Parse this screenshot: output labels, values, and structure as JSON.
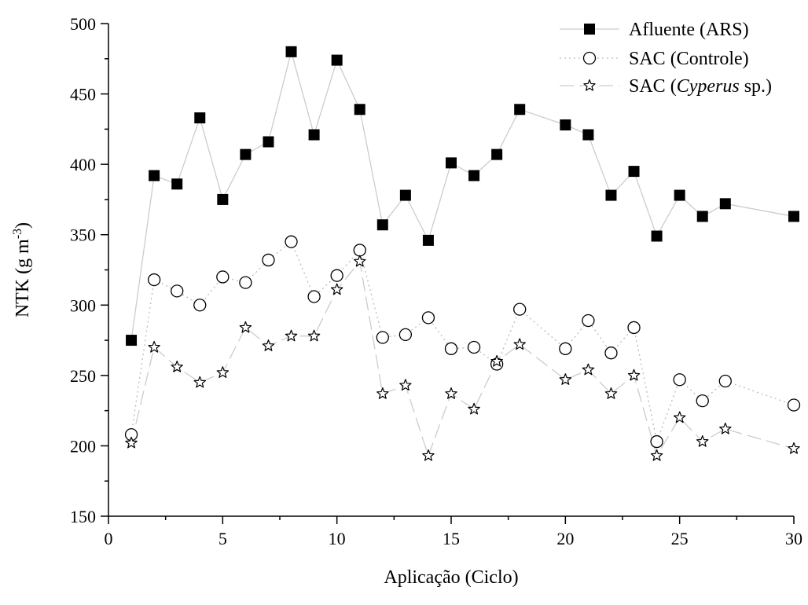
{
  "chart_data": {
    "type": "line",
    "title": "",
    "xlabel": "Aplicação (Ciclo)",
    "ylabel": "NTK (g m",
    "ylabel_superscript": "-3",
    "ylabel_suffix": ")",
    "xlim": [
      0,
      30
    ],
    "ylim": [
      150,
      500
    ],
    "xticks": [
      0,
      5,
      10,
      15,
      20,
      25,
      30
    ],
    "yticks": [
      150,
      200,
      250,
      300,
      350,
      400,
      450,
      500
    ],
    "grid": false,
    "legend_position": "top-right",
    "series": [
      {
        "name": "Afluente (ARS)",
        "legend_parts": [
          {
            "text": "Afluente (ARS)",
            "italic": false
          }
        ],
        "marker": "filled-square",
        "line_style": "solid",
        "line_color": "#cccccc",
        "x": [
          1,
          2,
          3,
          4,
          5,
          6,
          7,
          8,
          9,
          10,
          11,
          12,
          13,
          14,
          15,
          16,
          17,
          18,
          20,
          21,
          22,
          23,
          24,
          25,
          26,
          27,
          30
        ],
        "y": [
          275,
          392,
          386,
          433,
          375,
          407,
          416,
          480,
          421,
          474,
          439,
          357,
          378,
          346,
          401,
          392,
          407,
          439,
          428,
          421,
          378,
          395,
          349,
          378,
          363,
          372,
          363
        ]
      },
      {
        "name": "SAC (Controle)",
        "legend_parts": [
          {
            "text": "SAC (Controle)",
            "italic": false
          }
        ],
        "marker": "open-circle",
        "line_style": "dotted",
        "line_color": "#bbbbbb",
        "x": [
          1,
          2,
          3,
          4,
          5,
          6,
          7,
          8,
          9,
          10,
          11,
          12,
          13,
          14,
          15,
          16,
          17,
          18,
          20,
          21,
          22,
          23,
          24,
          25,
          26,
          27,
          30
        ],
        "y": [
          208,
          318,
          310,
          300,
          320,
          316,
          332,
          345,
          306,
          321,
          339,
          277,
          279,
          291,
          269,
          270,
          258,
          297,
          269,
          289,
          266,
          284,
          203,
          247,
          232,
          246,
          229
        ]
      },
      {
        "name": "SAC (Cyperus sp.)",
        "legend_parts": [
          {
            "text": "SAC (",
            "italic": false
          },
          {
            "text": "Cyperus",
            "italic": true
          },
          {
            "text": " sp.)",
            "italic": false
          }
        ],
        "marker": "open-star",
        "line_style": "dashed",
        "line_color": "#cccccc",
        "x": [
          1,
          2,
          3,
          4,
          5,
          6,
          7,
          8,
          9,
          10,
          11,
          12,
          13,
          14,
          15,
          16,
          17,
          18,
          20,
          21,
          22,
          23,
          24,
          25,
          26,
          27,
          30
        ],
        "y": [
          202,
          270,
          256,
          245,
          252,
          284,
          271,
          278,
          278,
          311,
          331,
          237,
          243,
          193,
          237,
          226,
          260,
          272,
          247,
          254,
          237,
          250,
          193,
          220,
          203,
          212,
          198
        ]
      }
    ]
  }
}
